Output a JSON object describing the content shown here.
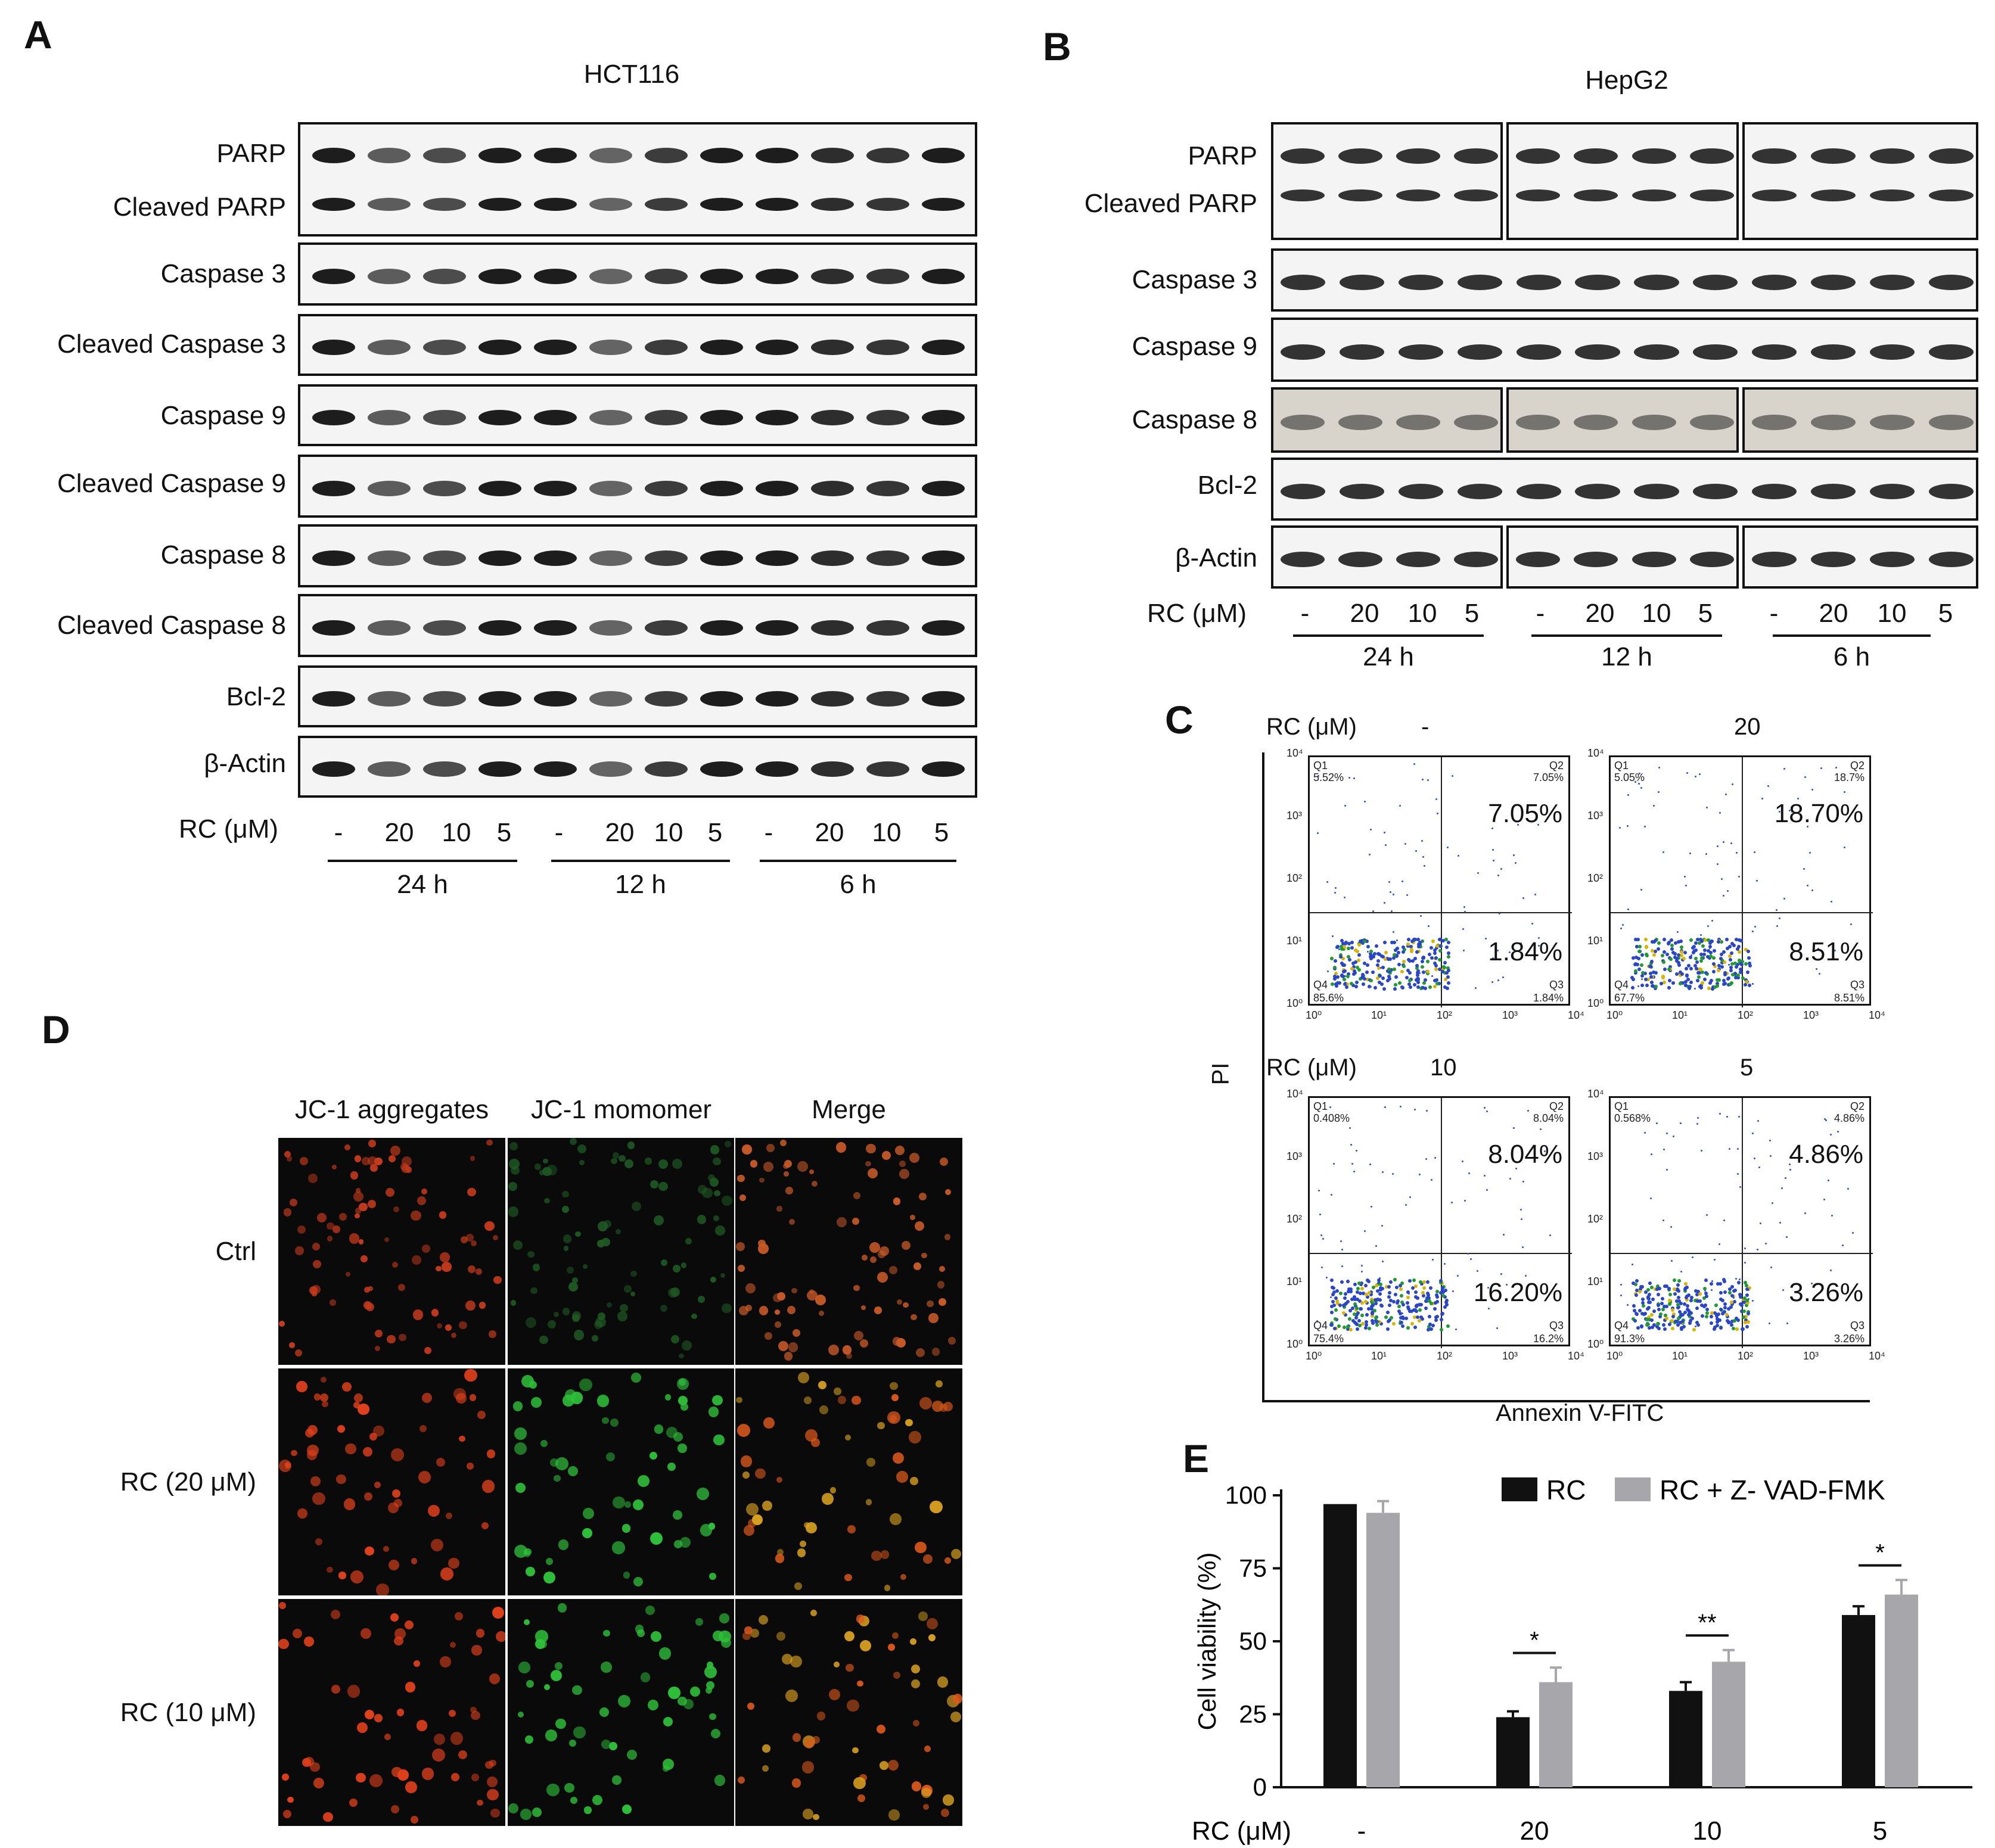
{
  "panels": {
    "A": "A",
    "B": "B",
    "C": "C",
    "D": "D",
    "E": "E"
  },
  "panel_a": {
    "title": "HCT116",
    "rows": [
      "PARP",
      "Cleaved PARP",
      "Caspase 3",
      "Cleaved Caspase 3",
      "Caspase 9",
      "Cleaved Caspase 9",
      "Caspase 8",
      "Cleaved Caspase 8",
      "Bcl-2",
      "β-Actin"
    ],
    "rc_label": "RC (μM)",
    "conditions": [
      "-",
      "20",
      "10",
      "5",
      "-",
      "20",
      "10",
      "5",
      "-",
      "20",
      "10",
      "5"
    ],
    "times": [
      "24 h",
      "12 h",
      "6 h"
    ]
  },
  "panel_b": {
    "title": "HepG2",
    "rows": [
      "PARP",
      "Cleaved PARP",
      "Caspase 3",
      "Caspase 9",
      "Caspase 8",
      "Bcl-2",
      "β-Actin"
    ],
    "rc_label": "RC (μM)",
    "conditions": [
      "-",
      "20",
      "10",
      "5",
      "-",
      "20",
      "10",
      "5",
      "-",
      "20",
      "10",
      "5"
    ],
    "times": [
      "24 h",
      "12 h",
      "6 h"
    ]
  },
  "panel_c": {
    "rc_label": "RC (μM)",
    "y_label": "PI",
    "x_label": "Annexin V-FITC",
    "plots": [
      {
        "dose": "-",
        "q1": "Q1",
        "q1_pct": "5.52%",
        "q2": "Q2",
        "q2_pct": "7.05%",
        "q3": "Q3",
        "q3_pct": "1.84%",
        "q4": "Q4",
        "q4_pct": "85.6%",
        "upper_big": "7.05%",
        "lower_big": "1.84%"
      },
      {
        "dose": "20",
        "q1": "Q1",
        "q1_pct": "5.05%",
        "q2": "Q2",
        "q2_pct": "18.7%",
        "q3": "Q3",
        "q3_pct": "8.51%",
        "q4": "Q4",
        "q4_pct": "67.7%",
        "upper_big": "18.70%",
        "lower_big": "8.51%"
      },
      {
        "dose": "10",
        "q1": "Q1",
        "q1_pct": "0.408%",
        "q2": "Q2",
        "q2_pct": "8.04%",
        "q3": "Q3",
        "q3_pct": "16.2%",
        "q4": "Q4",
        "q4_pct": "75.4%",
        "upper_big": "8.04%",
        "lower_big": "16.20%"
      },
      {
        "dose": "5",
        "q1": "Q1",
        "q1_pct": "0.568%",
        "q2": "Q2",
        "q2_pct": "4.86%",
        "q3": "Q3",
        "q3_pct": "3.26%",
        "q4": "Q4",
        "q4_pct": "91.3%",
        "upper_big": "4.86%",
        "lower_big": "3.26%"
      }
    ],
    "ticks": [
      "10⁰",
      "10¹",
      "10²",
      "10³",
      "10⁴"
    ]
  },
  "panel_d": {
    "columns": [
      "JC-1 aggregates",
      "JC-1 momomer",
      "Merge"
    ],
    "rows": [
      "Ctrl",
      "RC (20 μM)",
      "RC (10 μM)"
    ]
  },
  "chart_data": {
    "type": "bar",
    "categories": [
      "-",
      "20",
      "10",
      "5"
    ],
    "xlabel": "RC (μM)",
    "ylabel": "Cell viability (%)",
    "ylim": [
      0,
      100
    ],
    "yticks": [
      "0",
      "25",
      "50",
      "75",
      "100"
    ],
    "series": [
      {
        "name": "RC",
        "values": [
          97,
          24,
          33,
          59
        ],
        "errors": [
          0,
          2,
          3,
          3
        ],
        "color": "#111111"
      },
      {
        "name": "RC + Z- VAD-FMK",
        "values": [
          94,
          36,
          43,
          66
        ],
        "errors": [
          4,
          5,
          4,
          5
        ],
        "color": "#a7a6aa"
      }
    ],
    "significance": [
      "",
      "*",
      "**",
      "*"
    ],
    "legend": "top-right",
    "grid": false
  }
}
